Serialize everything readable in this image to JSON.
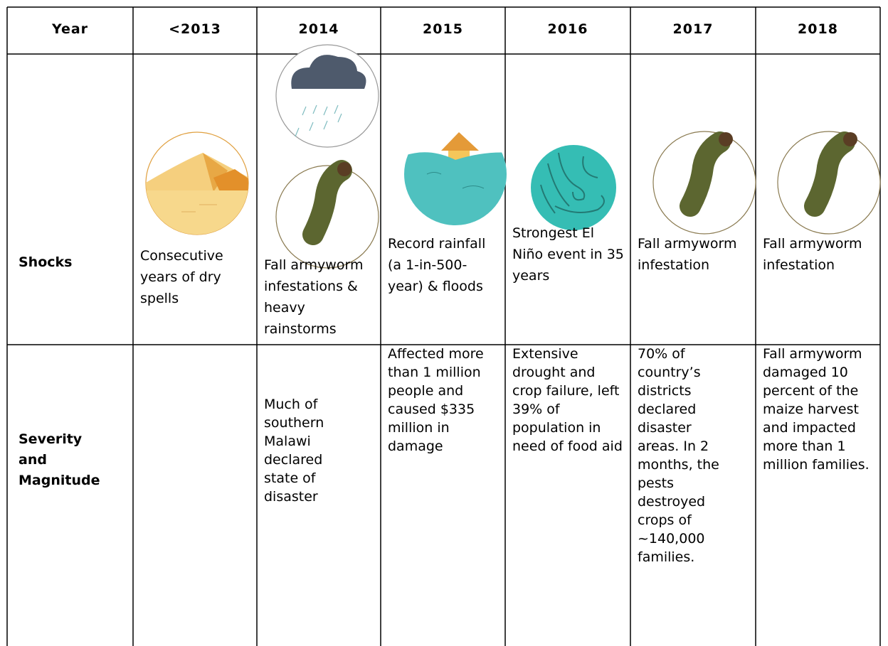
{
  "table": {
    "header": [
      "Year",
      "<2013",
      "2014",
      "2015",
      "2016",
      "2017",
      "2018"
    ],
    "rows": [
      {
        "label": "Shocks",
        "cells": [
          "Consecutive years of dry spells",
          "Fall armyworm infestations & heavy rainstorms",
          "Record rainfall (a 1-in-500-year) & floods",
          "Strongest El Niño event in 35 years",
          "Fall armyworm infestation",
          "Fall armyworm infestation"
        ]
      },
      {
        "label": "Severity and Magnitude",
        "cells": [
          null,
          "Much of southern Malawi declared state of disaster",
          "Affected more than 1 million people and caused $335 million in damage",
          "Extensive drought and crop failure, left 39% of population in need of food aid",
          "70% of country’s districts declared disaster areas. In 2 months, the pests destroyed crops of ~140,000 families.",
          "Fall armyworm damaged 10 percent of the maize harvest and impacted more than 1 million families."
        ]
      }
    ]
  }
}
